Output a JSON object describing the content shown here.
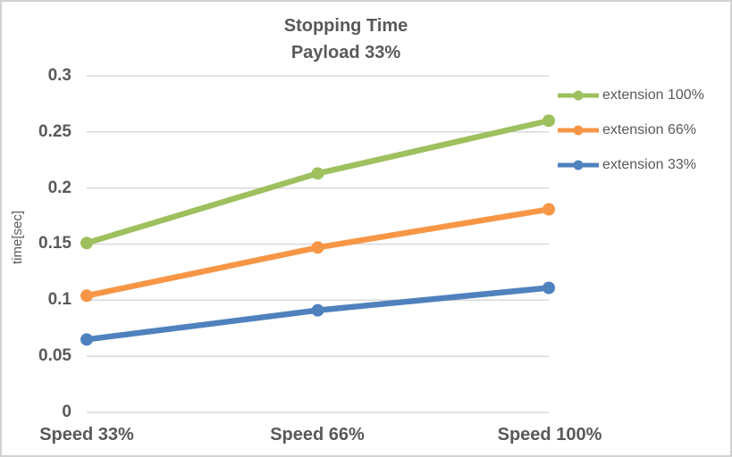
{
  "chart_data": {
    "type": "line",
    "title": "Stopping Time",
    "subtitle": "Payload 33%",
    "ylabel": "time[sec]",
    "xlabel": "",
    "categories": [
      "Speed 33%",
      "Speed 66%",
      "Speed 100%"
    ],
    "series": [
      {
        "name": "extension 100%",
        "color": "#9EC05E",
        "values": [
          0.151,
          0.213,
          0.26
        ]
      },
      {
        "name": "extension 66%",
        "color": "#F79646",
        "values": [
          0.104,
          0.147,
          0.181
        ]
      },
      {
        "name": "extension 33%",
        "color": "#4F81BD",
        "values": [
          0.065,
          0.091,
          0.111
        ]
      }
    ],
    "yticks": [
      "0.3",
      "0.25",
      "0.2",
      "0.15",
      "0.1",
      "0.05",
      "0"
    ],
    "ylim": [
      0,
      0.3
    ],
    "grid": true,
    "legend_position": "right",
    "colors": {
      "grid": "#D9D9D9",
      "text": "#595959",
      "border": "#D2D2D2"
    }
  }
}
